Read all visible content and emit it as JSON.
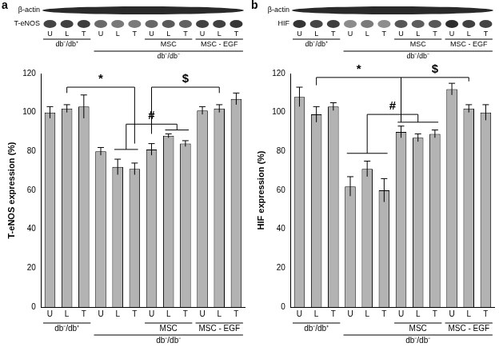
{
  "chart_data": [
    {
      "type": "bar",
      "title": "a",
      "blot_labels": [
        "β-actin",
        "T-eNOS"
      ],
      "categories": [
        "U",
        "L",
        "T",
        "U",
        "L",
        "T",
        "U",
        "L",
        "T",
        "U",
        "L",
        "T"
      ],
      "groups": [
        {
          "label": "db⁻/db⁺",
          "from": 0,
          "to": 2
        },
        {
          "label": "MSC",
          "from": 6,
          "to": 8
        },
        {
          "label": "MSC - EGF",
          "from": 9,
          "to": 11
        }
      ],
      "outer_group": {
        "label": "db⁻/db⁻",
        "from": 3,
        "to": 11
      },
      "y_label": "T-eNOS expression (%)",
      "values": [
        100,
        102,
        103,
        80,
        72,
        71,
        81,
        88,
        84,
        101,
        102,
        107
      ],
      "errors": [
        3,
        2,
        6,
        2,
        4,
        3,
        3,
        1,
        1.5,
        2,
        2,
        3
      ],
      "color": "#b3b3b3",
      "ylim": [
        0,
        120
      ],
      "yticks": [
        0,
        20,
        40,
        60,
        80,
        100,
        120
      ],
      "grid": false,
      "annotations": [
        {
          "text": "*"
        },
        {
          "text": "#"
        },
        {
          "text": "$"
        }
      ]
    },
    {
      "type": "bar",
      "title": "b",
      "blot_labels": [
        "β-actin",
        "HIF"
      ],
      "categories": [
        "U",
        "L",
        "T",
        "U",
        "L",
        "T",
        "U",
        "L",
        "T",
        "U",
        "L",
        "T"
      ],
      "groups": [
        {
          "label": "db⁻/db⁺",
          "from": 0,
          "to": 2
        },
        {
          "label": "MSC",
          "from": 6,
          "to": 8
        },
        {
          "label": "MSC - EGF",
          "from": 9,
          "to": 11
        }
      ],
      "outer_group": {
        "label": "db⁻/db⁻",
        "from": 3,
        "to": 11
      },
      "y_label": "HIF expression (%)",
      "values": [
        108,
        99,
        103,
        62,
        71,
        60,
        90,
        87,
        89,
        112,
        102,
        100
      ],
      "errors": [
        5,
        4,
        2,
        5,
        4,
        6,
        3,
        2,
        2,
        3,
        2,
        4
      ],
      "color": "#b3b3b3",
      "ylim": [
        0,
        120
      ],
      "yticks": [
        0,
        20,
        40,
        60,
        80,
        100,
        120
      ],
      "grid": false,
      "annotations": [
        {
          "text": "*"
        },
        {
          "text": "#"
        },
        {
          "text": "$"
        }
      ]
    }
  ]
}
